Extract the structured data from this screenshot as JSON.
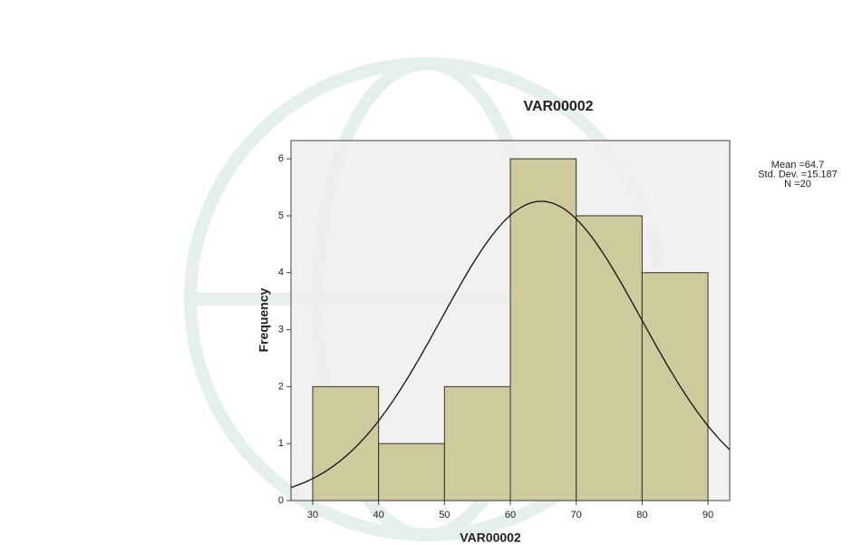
{
  "chart_data": {
    "type": "histogram",
    "title": "VAR00002",
    "x_label": "VAR00002",
    "y_label": "Frequency",
    "bins": [
      30,
      40,
      50,
      60,
      70,
      80,
      90
    ],
    "values": [
      2,
      1,
      2,
      6,
      5,
      4
    ],
    "color": "#c8c38c",
    "xlim": [
      26.7,
      93.3
    ],
    "xticks": [
      30,
      40,
      50,
      60,
      70,
      80,
      90
    ],
    "ylim": [
      0,
      6.32
    ],
    "yticks": [
      0,
      1,
      2,
      3,
      4,
      5,
      6
    ],
    "stats": [
      {
        "value": 64.7,
        "label": "Mean =64.7"
      },
      {
        "value": 15.187,
        "label": "Std. Dev. =15.187"
      },
      {
        "value": 20,
        "label": "N =20"
      }
    ],
    "normal_curve": true
  }
}
